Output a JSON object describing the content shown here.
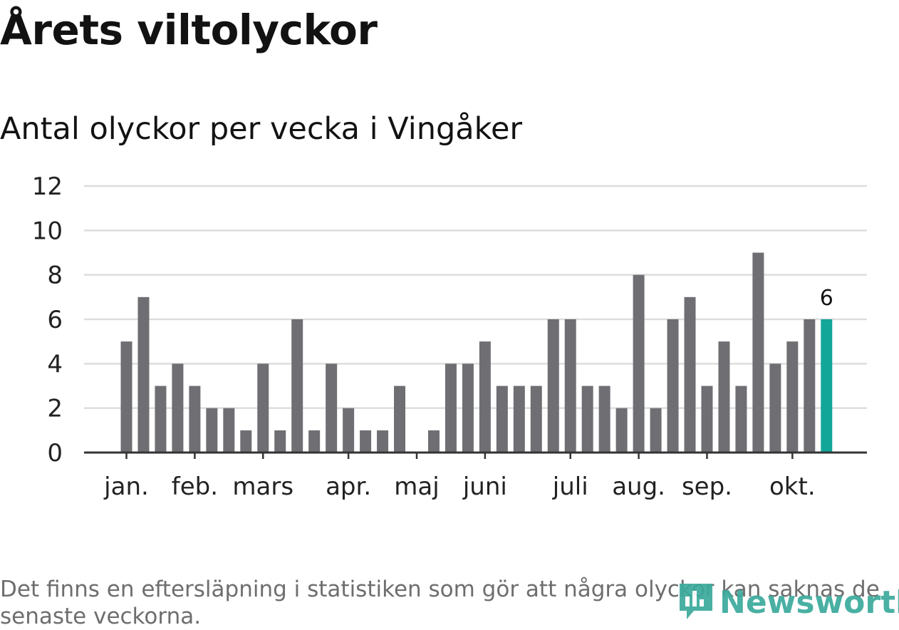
{
  "title": "Årets viltolyckor",
  "subtitle": "Antal olyckor per vecka i Vingåker",
  "footnote": "Det finns en eftersläpning i statistiken som gör att några olyckor kan saknas de senaste veckorna.",
  "logo_text": "Newsworthy",
  "colors": {
    "bar": "#6f6e73",
    "highlight": "#12a699",
    "grid": "#dddddd",
    "axis": "#333333",
    "logo": "#3aaa9c"
  },
  "chart_data": {
    "type": "bar",
    "title": "Antal olyckor per vecka i Vingåker",
    "xlabel": "",
    "ylabel": "",
    "ylim": [
      0,
      12
    ],
    "yticks": [
      0,
      2,
      4,
      6,
      8,
      10,
      12
    ],
    "weeks": [
      1,
      2,
      3,
      4,
      5,
      6,
      7,
      8,
      9,
      10,
      11,
      12,
      13,
      14,
      15,
      16,
      17,
      18,
      19,
      20,
      21,
      22,
      23,
      24,
      25,
      26,
      27,
      28,
      29,
      30,
      31,
      32,
      33,
      34,
      35,
      36,
      37,
      38,
      39,
      40,
      41,
      42
    ],
    "values": [
      5,
      7,
      3,
      4,
      3,
      2,
      2,
      1,
      4,
      1,
      6,
      1,
      4,
      2,
      1,
      1,
      3,
      0,
      1,
      4,
      4,
      5,
      3,
      3,
      3,
      6,
      6,
      3,
      3,
      2,
      8,
      2,
      6,
      7,
      3,
      5,
      3,
      9,
      4,
      5,
      6,
      6
    ],
    "highlight_index": 41,
    "highlight_label": "6",
    "month_labels": [
      {
        "label": "jan.",
        "week": 1.5
      },
      {
        "label": "feb.",
        "week": 5.5
      },
      {
        "label": "mars",
        "week": 9.5
      },
      {
        "label": "apr.",
        "week": 14.5
      },
      {
        "label": "maj",
        "week": 18.5
      },
      {
        "label": "juni",
        "week": 22.5
      },
      {
        "label": "juli",
        "week": 27.5
      },
      {
        "label": "aug.",
        "week": 31.5
      },
      {
        "label": "sep.",
        "week": 35.5
      },
      {
        "label": "okt.",
        "week": 40.5
      }
    ]
  }
}
